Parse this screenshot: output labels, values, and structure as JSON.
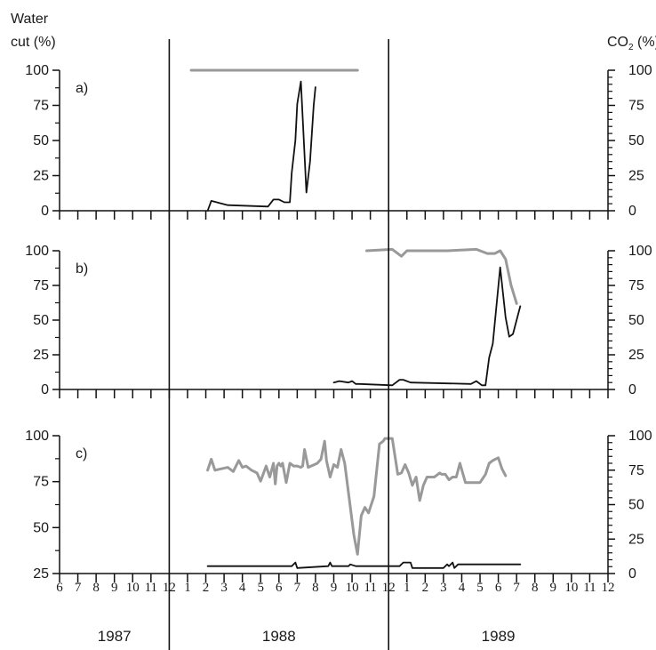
{
  "left_axis_title_line1": "Water",
  "left_axis_title_line2": "cut (%)",
  "right_axis_title": "CO",
  "right_axis_title_sub": "2",
  "right_axis_title_suffix": " (%)",
  "colors": {
    "water_cut": "#111111",
    "co2": "#999999",
    "axis": "#111111"
  },
  "x_axis": {
    "month_labels": [
      "6",
      "7",
      "8",
      "9",
      "10",
      "11",
      "12",
      "1",
      "2",
      "3",
      "4",
      "5",
      "6",
      "7",
      "8",
      "9",
      "10",
      "11",
      "12",
      "1",
      "2",
      "3",
      "4",
      "5",
      "6",
      "7",
      "8",
      "9",
      "10",
      "11",
      "12"
    ],
    "years": [
      "1987",
      "1988",
      "1989"
    ]
  },
  "chart_data": [
    {
      "type": "line",
      "panel_label": "a)",
      "xlim": [
        0,
        30
      ],
      "left_ylim": [
        0,
        100
      ],
      "left_ticks": [
        "0",
        "25",
        "50",
        "75",
        "100"
      ],
      "right_ylim": [
        0,
        100
      ],
      "right_ticks": [
        "0",
        "25",
        "50",
        "75",
        "100"
      ],
      "x_unit_note": "month index: 0 = Jun 1987, 6 = Dec 1987, 18 = Dec 1988",
      "series": [
        {
          "key": "water_cut",
          "axis": "left",
          "x": [
            8.1,
            8.3,
            9.2,
            11.4,
            11.7,
            12.0,
            12.3,
            12.6,
            12.7,
            12.9,
            13.0,
            13.2,
            13.5,
            13.7,
            13.9,
            14.0
          ],
          "y": [
            0,
            7,
            4,
            3,
            8,
            8,
            6,
            6,
            27,
            50,
            76,
            92,
            13,
            35,
            75,
            88
          ]
        },
        {
          "key": "co2",
          "axis": "right",
          "x": [
            7.2,
            16.3
          ],
          "y": [
            100,
            100
          ]
        }
      ]
    },
    {
      "type": "line",
      "panel_label": "b)",
      "xlim": [
        0,
        30
      ],
      "left_ylim": [
        0,
        100
      ],
      "left_ticks": [
        "0",
        "25",
        "50",
        "75",
        "100"
      ],
      "right_ylim": [
        0,
        100
      ],
      "right_ticks": [
        "0",
        "25",
        "50",
        "75",
        "100"
      ],
      "series": [
        {
          "key": "water_cut",
          "axis": "left",
          "x": [
            15.0,
            15.3,
            15.8,
            16.0,
            16.2,
            16.4,
            18.2,
            18.6,
            18.8,
            19.2,
            22.5,
            22.8,
            23.1,
            23.3,
            23.5,
            23.7,
            24.1,
            24.4,
            24.6,
            24.8,
            25.2
          ],
          "y": [
            5,
            6,
            5,
            6,
            4,
            4,
            3,
            7,
            7,
            5,
            4,
            6,
            3,
            3,
            23,
            33,
            88,
            52,
            38,
            40,
            60
          ]
        },
        {
          "key": "co2",
          "axis": "right",
          "x": [
            16.8,
            18.2,
            18.7,
            19.0,
            21.2,
            22.8,
            23.4,
            23.8,
            24.1,
            24.4,
            24.7,
            25.0
          ],
          "y": [
            100,
            101,
            96,
            100,
            100,
            101,
            98,
            98,
            100,
            94,
            75,
            62
          ]
        }
      ]
    },
    {
      "type": "line",
      "panel_label": "c)",
      "xlim": [
        0,
        30
      ],
      "left_ylim": [
        25,
        100
      ],
      "left_ticks": [
        "25",
        "50",
        "75",
        "100"
      ],
      "right_ylim": [
        0,
        100
      ],
      "right_ticks": [
        "0",
        "25",
        "50",
        "75",
        "100"
      ],
      "series": [
        {
          "key": "water_cut",
          "axis": "left",
          "x": [
            8.1,
            12.7,
            12.9,
            13.0,
            14.7,
            14.8,
            14.9,
            15.5,
            15.8,
            15.9,
            16.2,
            18.6,
            18.8,
            19.2,
            19.3,
            21.0,
            21.2,
            21.3,
            21.5,
            21.6,
            21.7,
            21.8,
            22.0,
            25.2
          ],
          "y": [
            29,
            29,
            31,
            28,
            29,
            31,
            29,
            29,
            29,
            30,
            29,
            29,
            31,
            31,
            28,
            28,
            30,
            29,
            31,
            28,
            29,
            30,
            30,
            30
          ]
        },
        {
          "key": "co2",
          "axis": "right",
          "x": [
            8.1,
            8.3,
            8.5,
            9.2,
            9.5,
            9.8,
            10.0,
            10.2,
            10.5,
            10.8,
            11.0,
            11.3,
            11.5,
            11.7,
            11.8,
            11.9,
            12.0,
            12.1,
            12.2,
            12.4,
            12.6,
            12.8,
            13.0,
            13.2,
            13.3,
            13.4,
            13.6,
            14.1,
            14.3,
            14.5,
            14.6,
            14.8,
            15.0,
            15.2,
            15.4,
            15.6,
            16.1,
            16.3,
            16.5,
            16.7,
            16.9,
            17.2,
            17.5,
            17.7,
            17.8,
            18.0,
            18.2,
            18.5,
            18.7,
            18.9,
            19.1,
            19.3,
            19.5,
            19.7,
            19.9,
            20.1,
            20.3,
            20.5,
            20.7,
            20.8,
            20.9,
            21.1,
            21.3,
            21.5,
            21.7,
            21.9,
            22.2,
            22.5,
            22.8,
            23.0,
            23.3,
            23.5,
            23.7,
            24.0,
            24.2,
            24.4
          ],
          "y": [
            75,
            83,
            75,
            77,
            74,
            82,
            77,
            78,
            75,
            73,
            67,
            78,
            70,
            80,
            65,
            78,
            80,
            78,
            80,
            66,
            80,
            78,
            78,
            77,
            78,
            90,
            77,
            80,
            83,
            96,
            82,
            70,
            79,
            77,
            90,
            80,
            28,
            14,
            42,
            48,
            44,
            56,
            94,
            96,
            98,
            98,
            98,
            72,
            73,
            79,
            73,
            64,
            70,
            53,
            64,
            70,
            70,
            70,
            72,
            73,
            72,
            72,
            68,
            70,
            70,
            80,
            66,
            66,
            66,
            66,
            72,
            80,
            82,
            84,
            76,
            71
          ]
        }
      ]
    }
  ]
}
